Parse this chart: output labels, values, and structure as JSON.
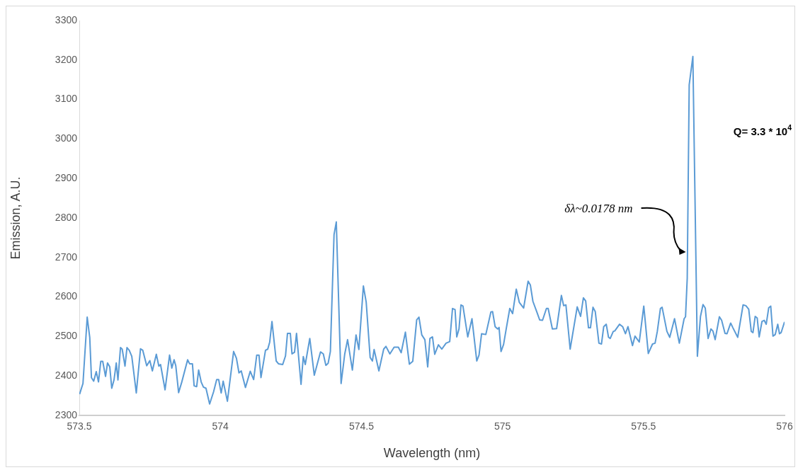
{
  "chart_data": {
    "type": "line",
    "xlabel": "Wavelength (nm)",
    "ylabel": "Emission, A.U.",
    "xlim": [
      573.5,
      576
    ],
    "xticks": [
      573.5,
      574,
      574.5,
      575,
      575.5,
      576
    ],
    "ylim": [
      2300,
      3300
    ],
    "yticks": [
      2300,
      2400,
      2500,
      2600,
      2700,
      2800,
      2900,
      3000,
      3100,
      3200,
      3300
    ],
    "grid": false,
    "legend": false,
    "marker": "none",
    "line_style": "solid",
    "annotations": [
      {
        "text": "δλ~0.0178 nm",
        "x": 575.65,
        "y": 2714
      },
      "Q= 3.3 * 10$^{4}$"
    ],
    "series": [
      {
        "color": "#5b9bd5",
        "x": [
          573.501,
          573.513,
          573.528,
          573.537,
          573.543,
          573.551,
          573.56,
          573.568,
          573.576,
          573.583,
          573.593,
          573.6,
          573.608,
          573.615,
          573.623,
          573.631,
          573.637,
          573.646,
          573.652,
          573.662,
          573.669,
          573.677,
          573.686,
          573.702,
          573.717,
          573.725,
          573.739,
          573.75,
          573.759,
          573.773,
          573.782,
          573.788,
          573.804,
          573.82,
          573.828,
          573.836,
          573.842,
          573.852,
          573.863,
          573.884,
          573.891,
          573.901,
          573.907,
          573.916,
          573.923,
          573.932,
          573.94,
          573.949,
          573.962,
          573.976,
          573.987,
          573.994,
          574.003,
          574.01,
          574.025,
          574.047,
          574.057,
          574.066,
          574.074,
          574.089,
          574.106,
          574.118,
          574.129,
          574.137,
          574.144,
          574.16,
          574.168,
          574.175,
          574.183,
          574.198,
          574.206,
          574.221,
          574.231,
          574.238,
          574.248,
          574.254,
          574.263,
          574.27,
          574.286,
          574.294,
          574.301,
          574.317,
          574.333,
          574.355,
          574.365,
          574.374,
          574.382,
          574.39,
          574.403,
          574.411,
          574.428,
          574.441,
          574.451,
          574.468,
          574.481,
          574.491,
          574.507,
          574.517,
          574.531,
          574.539,
          574.545,
          574.562,
          574.579,
          574.587,
          574.601,
          574.616,
          574.631,
          574.641,
          574.656,
          574.67,
          574.682,
          574.696,
          574.704,
          574.714,
          574.725,
          574.735,
          574.743,
          574.752,
          574.76,
          574.773,
          574.785,
          574.8,
          574.813,
          574.823,
          574.832,
          574.838,
          574.846,
          574.853,
          574.86,
          574.877,
          574.892,
          574.909,
          574.917,
          574.926,
          574.941,
          574.959,
          574.965,
          574.974,
          574.983,
          574.988,
          574.995,
          575.004,
          575.014,
          575.026,
          575.036,
          575.049,
          575.06,
          575.075,
          575.091,
          575.099,
          575.108,
          575.122,
          575.132,
          575.142,
          575.156,
          575.162,
          575.177,
          575.192,
          575.209,
          575.217,
          575.225,
          575.24,
          575.265,
          575.277,
          575.287,
          575.295,
          575.305,
          575.312,
          575.321,
          575.329,
          575.342,
          575.351,
          575.359,
          575.368,
          575.376,
          575.382,
          575.393,
          575.398,
          575.415,
          575.426,
          575.436,
          575.445,
          575.461,
          575.47,
          575.485,
          575.501,
          575.517,
          575.532,
          575.541,
          575.549,
          575.56,
          575.566,
          575.583,
          575.593,
          575.61,
          575.627,
          575.644,
          575.649,
          575.655,
          575.662,
          575.675,
          575.691,
          575.702,
          575.711,
          575.719,
          575.729,
          575.739,
          575.746,
          575.754,
          575.769,
          575.777,
          575.789,
          575.796,
          575.809,
          575.817,
          575.834,
          575.853,
          575.863,
          575.873,
          575.882,
          575.888,
          575.896,
          575.903,
          575.91,
          575.92,
          575.928,
          575.935,
          575.944,
          575.951,
          575.959,
          575.967,
          575.976,
          575.982,
          575.988,
          576.0
        ],
        "values": [
          2354,
          2381,
          2549,
          2498,
          2396,
          2387,
          2411,
          2385,
          2437,
          2437,
          2399,
          2433,
          2423,
          2369,
          2390,
          2433,
          2390,
          2472,
          2468,
          2425,
          2472,
          2465,
          2450,
          2357,
          2469,
          2465,
          2426,
          2439,
          2413,
          2455,
          2425,
          2429,
          2365,
          2453,
          2420,
          2441,
          2426,
          2358,
          2384,
          2441,
          2431,
          2431,
          2375,
          2373,
          2415,
          2385,
          2372,
          2369,
          2329,
          2360,
          2391,
          2391,
          2357,
          2387,
          2336,
          2462,
          2445,
          2408,
          2413,
          2371,
          2412,
          2391,
          2453,
          2453,
          2396,
          2465,
          2468,
          2486,
          2538,
          2438,
          2431,
          2429,
          2451,
          2508,
          2508,
          2456,
          2460,
          2508,
          2379,
          2449,
          2429,
          2495,
          2402,
          2461,
          2456,
          2427,
          2432,
          2462,
          2758,
          2790,
          2381,
          2456,
          2492,
          2415,
          2504,
          2467,
          2628,
          2587,
          2447,
          2438,
          2467,
          2413,
          2468,
          2475,
          2456,
          2473,
          2473,
          2459,
          2511,
          2430,
          2437,
          2542,
          2549,
          2504,
          2492,
          2423,
          2495,
          2499,
          2455,
          2479,
          2468,
          2483,
          2487,
          2571,
          2568,
          2499,
          2519,
          2580,
          2577,
          2499,
          2545,
          2438,
          2453,
          2507,
          2505,
          2562,
          2563,
          2525,
          2519,
          2523,
          2462,
          2480,
          2522,
          2571,
          2558,
          2620,
          2586,
          2572,
          2640,
          2630,
          2589,
          2562,
          2542,
          2541,
          2571,
          2571,
          2519,
          2520,
          2604,
          2578,
          2580,
          2468,
          2575,
          2551,
          2598,
          2590,
          2522,
          2522,
          2574,
          2563,
          2483,
          2481,
          2525,
          2531,
          2498,
          2495,
          2513,
          2514,
          2531,
          2525,
          2507,
          2525,
          2477,
          2501,
          2486,
          2577,
          2457,
          2481,
          2483,
          2513,
          2571,
          2574,
          2513,
          2498,
          2545,
          2483,
          2545,
          2550,
          2647,
          3137,
          3209,
          2450,
          2551,
          2581,
          2572,
          2495,
          2519,
          2514,
          2492,
          2550,
          2541,
          2508,
          2507,
          2534,
          2522,
          2498,
          2580,
          2578,
          2569,
          2513,
          2510,
          2551,
          2547,
          2499,
          2538,
          2541,
          2531,
          2573,
          2577,
          2501,
          2505,
          2531,
          2507,
          2510,
          2537
        ]
      }
    ]
  }
}
